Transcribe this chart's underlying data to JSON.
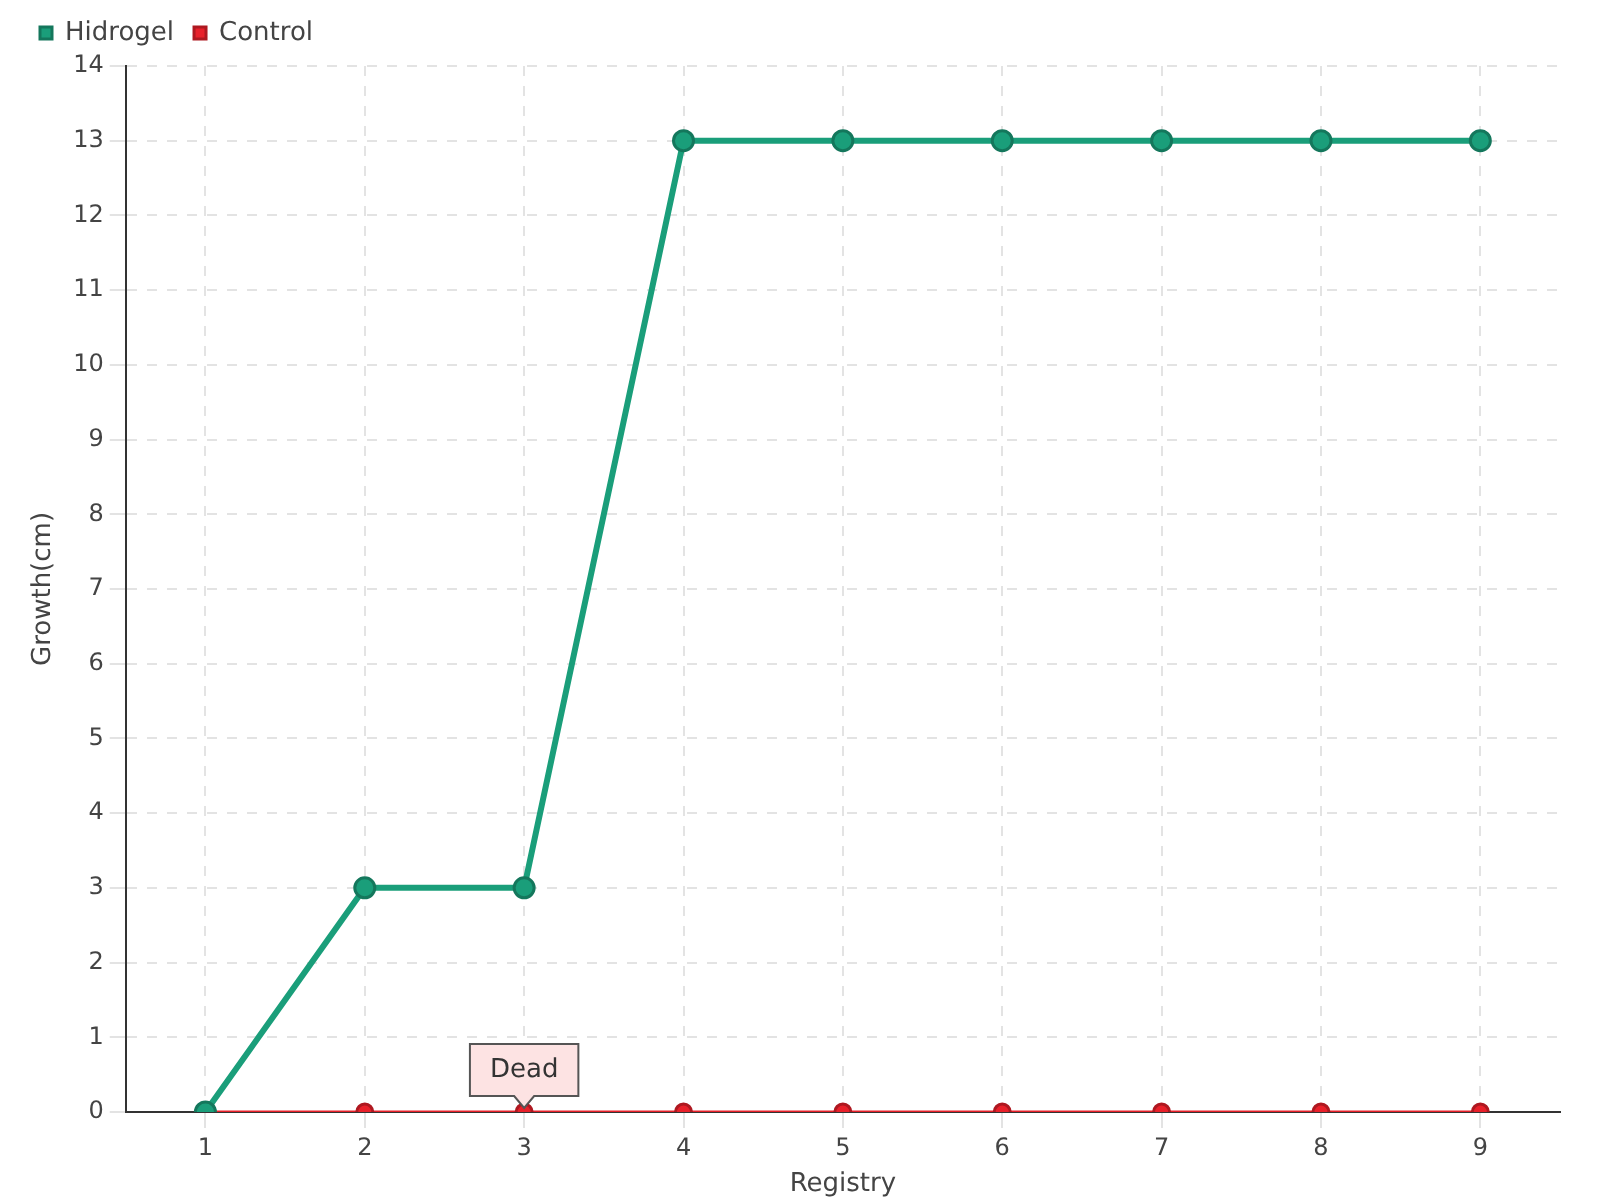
{
  "chart_data": {
    "type": "line",
    "xlabel": "Registry",
    "ylabel": "Growth(cm)",
    "categories": [
      "1",
      "2",
      "3",
      "4",
      "5",
      "6",
      "7",
      "8",
      "9"
    ],
    "series": [
      {
        "name": "Hidrogel",
        "color": "#1a9e7a",
        "values": [
          0,
          3,
          3,
          13,
          13,
          13,
          13,
          13,
          13
        ]
      },
      {
        "name": "Control",
        "color": "#e8202a",
        "values": [
          0,
          0,
          0,
          0,
          0,
          0,
          0,
          0,
          0
        ]
      }
    ],
    "ylim": [
      0,
      14
    ],
    "yticks": [
      0,
      1,
      2,
      3,
      4,
      5,
      6,
      7,
      8,
      9,
      10,
      11,
      12,
      13,
      14
    ],
    "grid": true,
    "legend": "top left",
    "marker": "circle",
    "line_style": "solid",
    "annotations": [
      {
        "text": "Dead",
        "x": "3",
        "y": 0
      }
    ]
  }
}
